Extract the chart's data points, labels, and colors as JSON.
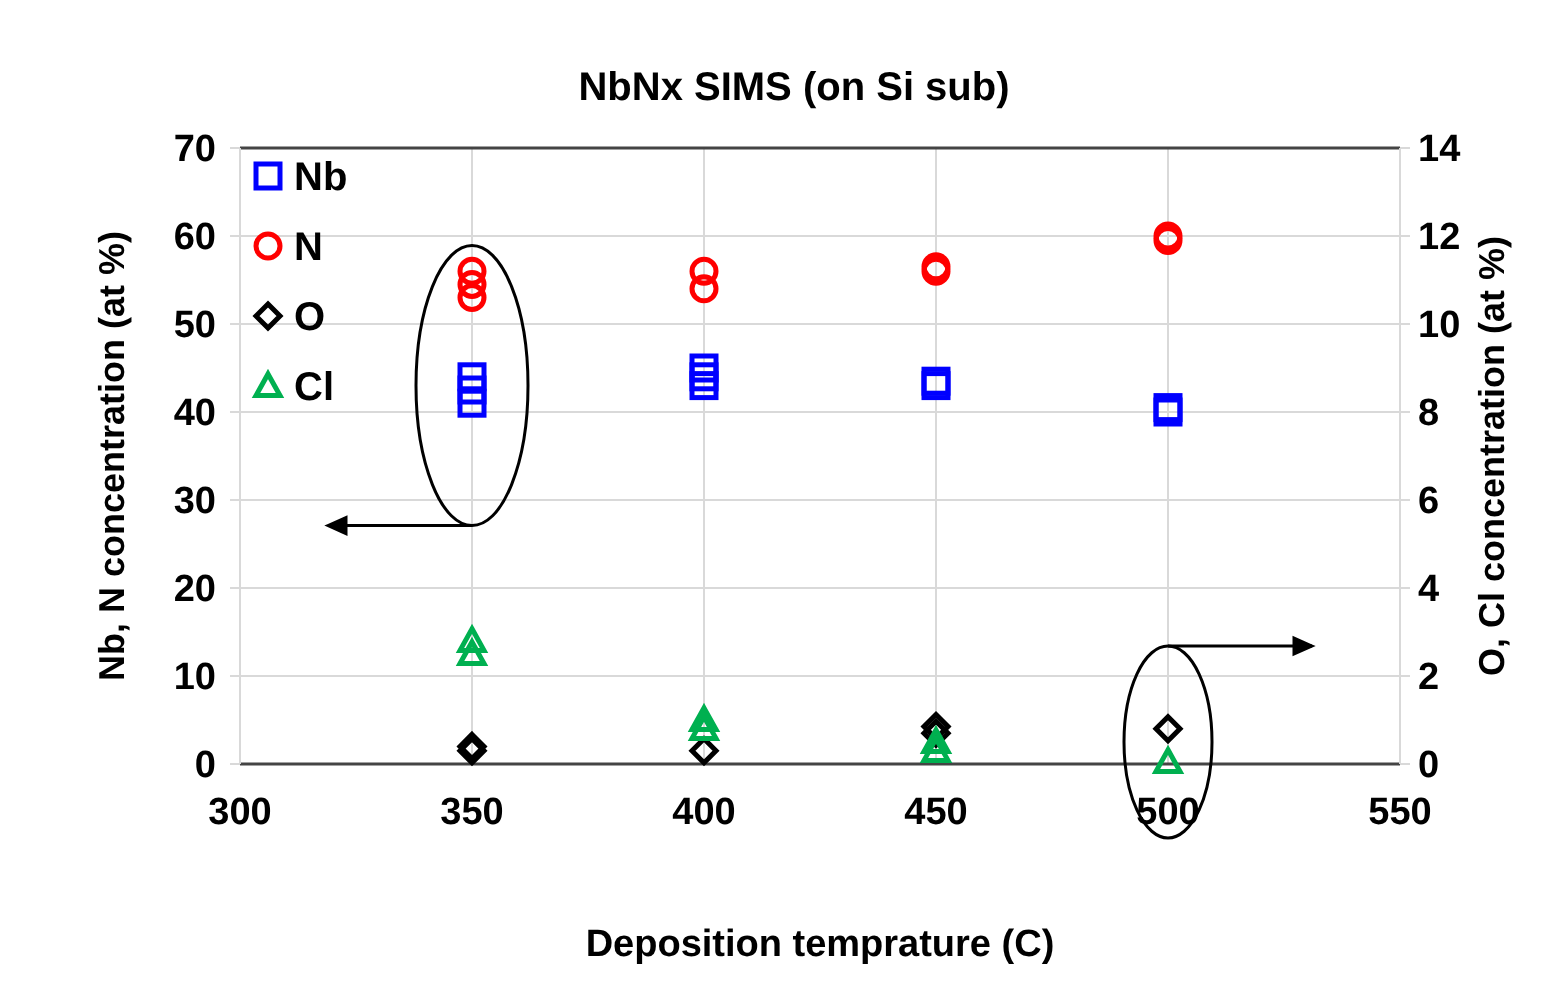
{
  "chart_data": {
    "type": "scatter",
    "title": "NbNx SIMS (on Si sub)",
    "xlabel": "Deposition temprature (C)",
    "ylabel": "Nb, N concentration (at %)",
    "y2label": "O, Cl concentration (at %)",
    "xlim": [
      300,
      550
    ],
    "xticks": [
      300,
      350,
      400,
      450,
      500,
      550
    ],
    "ylim": [
      0,
      70
    ],
    "yticks": [
      0,
      10,
      20,
      30,
      40,
      50,
      60,
      70
    ],
    "y2lim": [
      0,
      14
    ],
    "y2ticks": [
      0,
      2,
      4,
      6,
      8,
      10,
      12,
      14
    ],
    "grid": true,
    "legend": "top left",
    "series": [
      {
        "name": "Nb",
        "color": "#0000ff",
        "marker": "square",
        "x": [
          350,
          350,
          350,
          400,
          400,
          400,
          450,
          450,
          500,
          500
        ],
        "values": [
          41,
          42.5,
          44,
          43,
          44,
          45,
          43,
          43.5,
          40,
          40.5
        ]
      },
      {
        "name": "N",
        "color": "#ff0000",
        "marker": "circle",
        "x": [
          350,
          350,
          350,
          400,
          400,
          450,
          450,
          500,
          500
        ],
        "values": [
          53,
          54.5,
          56,
          54,
          56,
          56,
          56.5,
          59.5,
          60
        ]
      },
      {
        "name": "O",
        "color": "#000000",
        "marker": "diamond",
        "axis": "y2",
        "x": [
          350,
          350,
          400,
          450,
          450,
          500
        ],
        "values": [
          0.3,
          0.4,
          0.3,
          0.7,
          0.85,
          0.8
        ]
      },
      {
        "name": "Cl",
        "color": "#00b050",
        "marker": "triangle",
        "axis": "y2",
        "x": [
          350,
          350,
          400,
          400,
          450,
          450,
          500
        ],
        "values": [
          2.5,
          2.8,
          0.8,
          1.0,
          0.3,
          0.5,
          0.05
        ]
      }
    ]
  }
}
